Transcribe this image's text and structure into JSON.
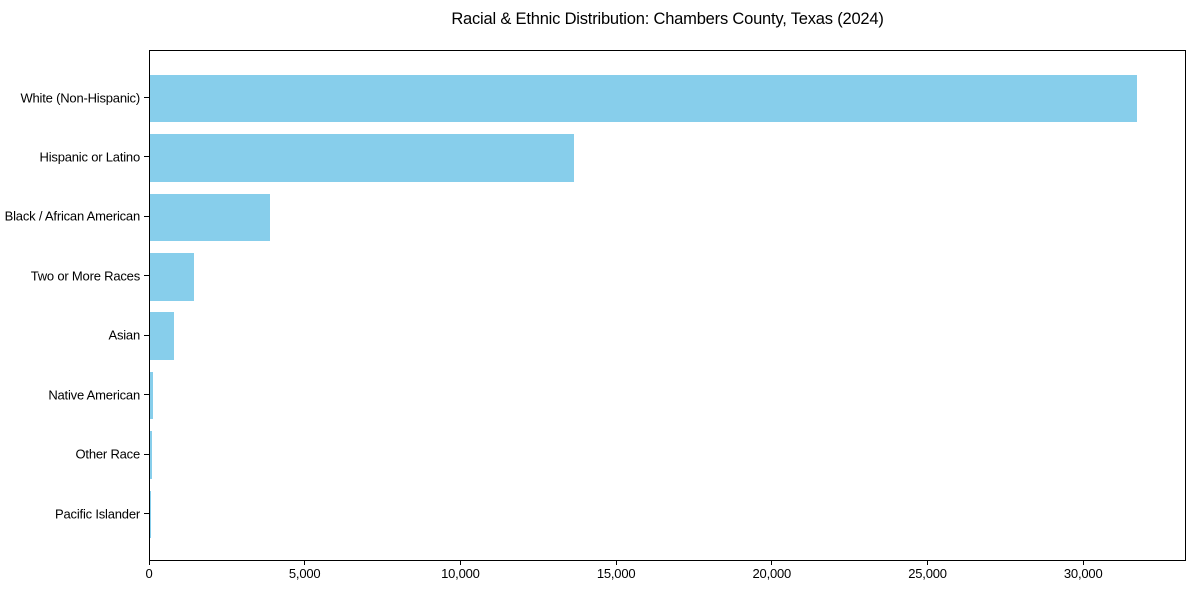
{
  "chart_data": {
    "type": "bar",
    "orientation": "horizontal",
    "title": "Racial & Ethnic Distribution: Chambers County, Texas (2024)",
    "xlabel": "",
    "ylabel": "",
    "categories": [
      "White (Non-Hispanic)",
      "Hispanic or Latino",
      "Black / African American",
      "Two or More Races",
      "Asian",
      "Native American",
      "Other Race",
      "Pacific Islander"
    ],
    "values": [
      31700,
      13600,
      3850,
      1400,
      770,
      90,
      50,
      15
    ],
    "xlim": [
      0,
      33300
    ],
    "x_ticks": [
      0,
      5000,
      10000,
      15000,
      20000,
      25000,
      30000
    ],
    "x_tick_labels": [
      "0",
      "5,000",
      "10,000",
      "15,000",
      "20,000",
      "25,000",
      "30,000"
    ],
    "bar_color": "#87CEEB",
    "background_color": "#ffffff",
    "spine_color": "#000000",
    "grid": false,
    "legend": null
  }
}
